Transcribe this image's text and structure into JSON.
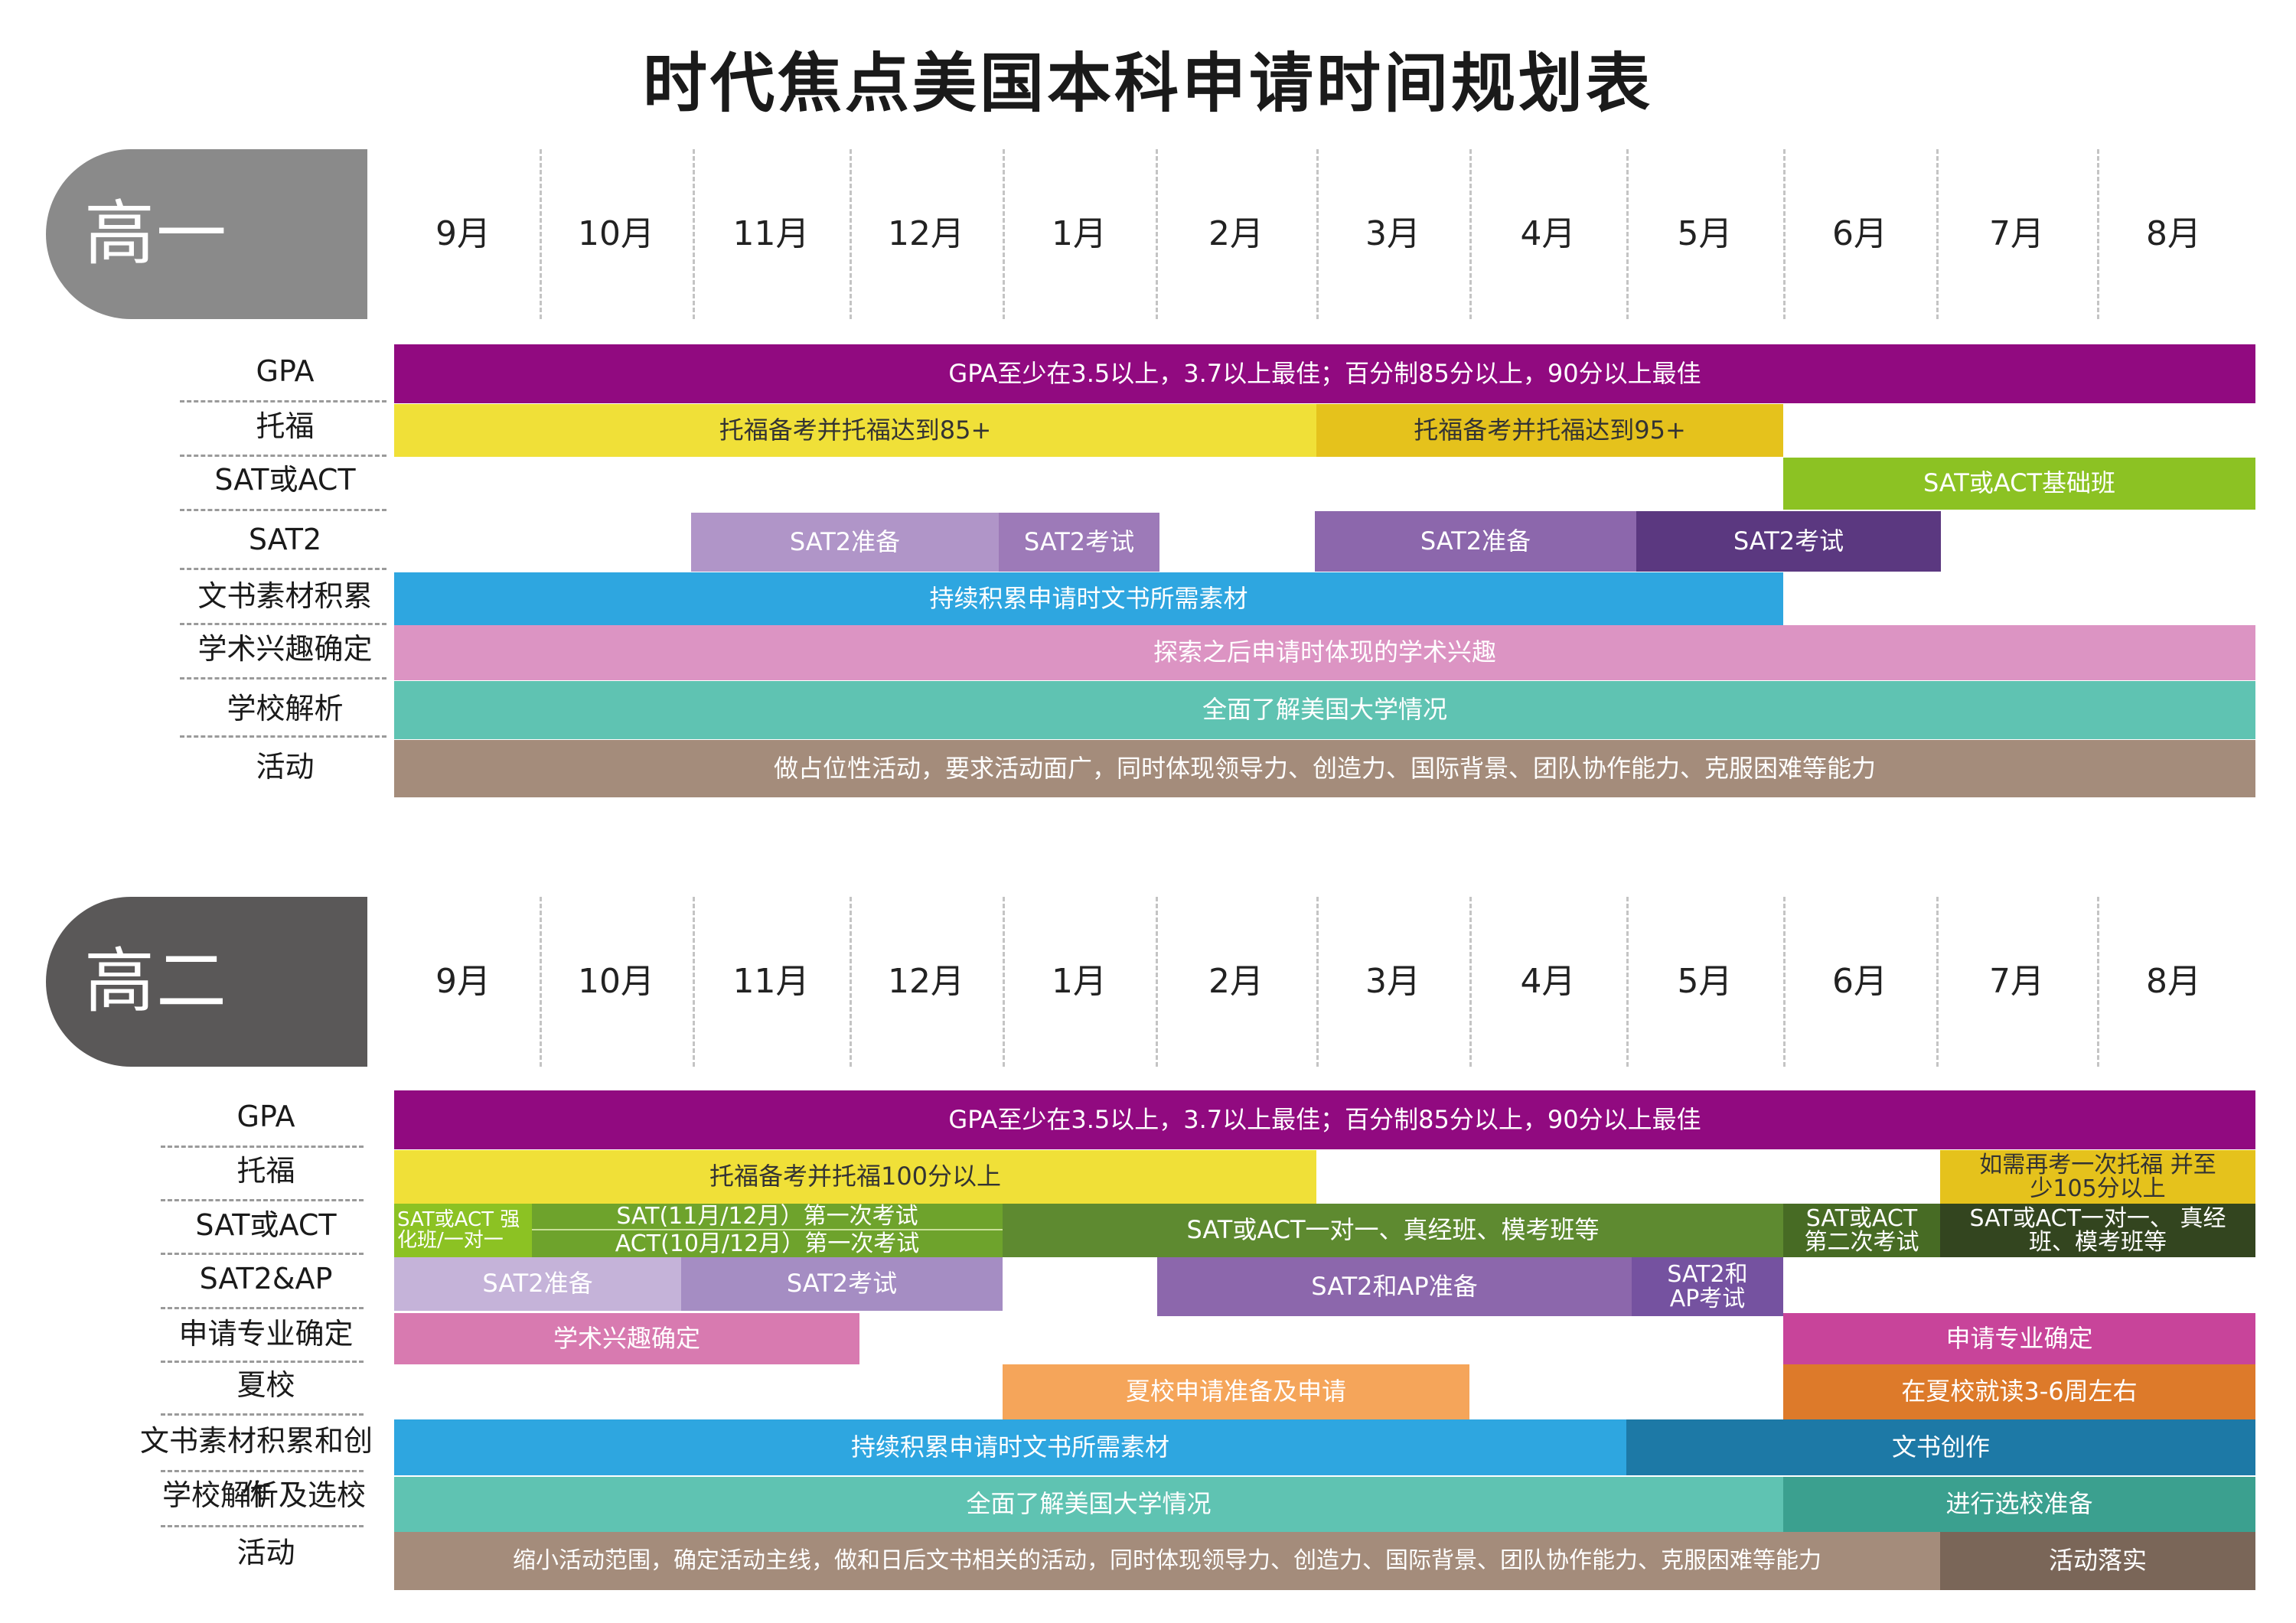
{
  "title": "时代焦点美国本科申请时间规划表",
  "months": [
    "9月",
    "10月",
    "11月",
    "12月",
    "1月",
    "2月",
    "3月",
    "4月",
    "5月",
    "6月",
    "7月",
    "8月"
  ],
  "colors": {
    "grade1": "#8a8a8a",
    "grade2": "#5a5858",
    "gpa": "#910a80",
    "toefl": "#f0e038",
    "toefl2": "#e5c21c",
    "sat_base": "#8cc223",
    "sat2_prep": "#b095c8",
    "sat2_exam": "#9d7ab8",
    "sat2_prep_b": "#8c67ac",
    "sat2_exam_b": "#5b3880",
    "essay": "#2ea6e0",
    "interest": "#dc94c3",
    "school": "#5fc3b2",
    "activity": "#a48c7b"
  },
  "grade1": {
    "label": "高一",
    "rows": [
      {
        "label": "GPA",
        "bars": [
          {
            "text": "GPA至少在3.5以上，3.7以上最佳；百分制85分以上，90分以上最佳"
          }
        ]
      },
      {
        "label": "托福",
        "bars": [
          {
            "text": "托福备考并托福达到85+"
          },
          {
            "text": "托福备考并托福达到95+"
          }
        ]
      },
      {
        "label": "SAT或ACT",
        "bars": [
          {
            "text": "SAT或ACT基础班"
          }
        ]
      },
      {
        "label": "SAT2",
        "bars": [
          {
            "text": "SAT2准备"
          },
          {
            "text": "SAT2考试"
          },
          {
            "text": "SAT2准备"
          },
          {
            "text": "SAT2考试"
          }
        ]
      },
      {
        "label": "文书素材积累",
        "bars": [
          {
            "text": "持续积累申请时文书所需素材"
          }
        ]
      },
      {
        "label": "学术兴趣确定",
        "bars": [
          {
            "text": "探索之后申请时体现的学术兴趣"
          }
        ]
      },
      {
        "label": "学校解析",
        "bars": [
          {
            "text": "全面了解美国大学情况"
          }
        ]
      },
      {
        "label": "活动",
        "bars": [
          {
            "text": "做占位性活动，要求活动面广，同时体现领导力、创造力、国际背景、团队协作能力、克服困难等能力"
          }
        ]
      }
    ]
  },
  "grade2": {
    "label": "高二",
    "rows": [
      {
        "label": "GPA",
        "bars": [
          {
            "text": "GPA至少在3.5以上，3.7以上最佳；百分制85分以上，90分以上最佳"
          }
        ]
      },
      {
        "label": "托福",
        "bars": [
          {
            "text": "托福备考并托福100分以上"
          },
          {
            "text": "如需再考一次托福 并至少105分以上"
          }
        ]
      },
      {
        "label": "SAT或ACT",
        "bars": [
          {
            "text": "SAT或ACT 强化班/一对一"
          },
          {
            "text": "SAT(11月/12月）第一次考试"
          },
          {
            "text": "ACT(10月/12月）第一次考试"
          },
          {
            "text": "SAT或ACT一对一、真经班、模考班等"
          },
          {
            "text": "SAT或ACT 第二次考试"
          },
          {
            "text": "SAT或ACT一对一、 真经班、模考班等"
          }
        ]
      },
      {
        "label": "SAT2&AP",
        "bars": [
          {
            "text": "SAT2准备"
          },
          {
            "text": "SAT2考试"
          },
          {
            "text": "SAT2和AP准备"
          },
          {
            "text": "SAT2和 AP考试"
          }
        ]
      },
      {
        "label": "申请专业确定",
        "bars": [
          {
            "text": "学术兴趣确定"
          },
          {
            "text": "申请专业确定"
          }
        ]
      },
      {
        "label": "夏校",
        "bars": [
          {
            "text": "夏校申请准备及申请"
          },
          {
            "text": "在夏校就读3-6周左右"
          }
        ]
      },
      {
        "label": "文书素材积累和创作",
        "bars": [
          {
            "text": "持续积累申请时文书所需素材"
          },
          {
            "text": "文书创作"
          }
        ]
      },
      {
        "label": "学校解析及选校",
        "bars": [
          {
            "text": "全面了解美国大学情况"
          },
          {
            "text": "进行选校准备"
          }
        ]
      },
      {
        "label": "活动",
        "bars": [
          {
            "text": "缩小活动范围，确定活动主线，做和日后文书相关的活动，同时体现领导力、创造力、国际背景、团队协作能力、克服困难等能力"
          },
          {
            "text": "活动落实"
          }
        ]
      }
    ]
  }
}
